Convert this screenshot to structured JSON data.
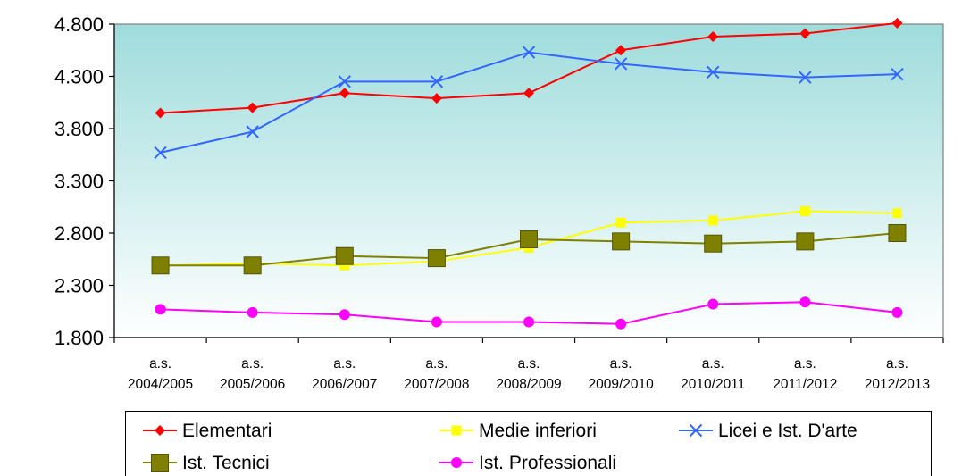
{
  "chart_data": {
    "type": "line",
    "categories": [
      [
        "a.s.",
        "2004/2005"
      ],
      [
        "a.s.",
        "2005/2006"
      ],
      [
        "a.s.",
        "2006/2007"
      ],
      [
        "a.s.",
        "2007/2008"
      ],
      [
        "a.s.",
        "2008/2009"
      ],
      [
        "a.s.",
        "2009/2010"
      ],
      [
        "a.s.",
        "2010/2011"
      ],
      [
        "a.s.",
        "2011/2012"
      ],
      [
        "a.s.",
        "2012/2013"
      ]
    ],
    "ylim": [
      1800,
      4800
    ],
    "yticks": [
      1800,
      2300,
      2800,
      3300,
      3800,
      4300,
      4800
    ],
    "ytick_labels": [
      "1.800",
      "2.300",
      "2.800",
      "3.300",
      "3.800",
      "4.300",
      "4.800"
    ],
    "grid": false,
    "legend_position": "bottom",
    "plot_background": "gradient teal to white",
    "series": [
      {
        "name": "Elementari",
        "color": "#ff0000",
        "marker": "diamond",
        "values": [
          3950,
          4000,
          4140,
          4090,
          4140,
          4550,
          4680,
          4710,
          4810
        ]
      },
      {
        "name": "Medie inferiori",
        "color": "#ffff00",
        "marker": "square",
        "values": [
          2490,
          2510,
          2490,
          2530,
          2660,
          2900,
          2920,
          3010,
          2990
        ]
      },
      {
        "name": "Licei e Ist. D'arte",
        "color": "#3366ff",
        "marker": "x",
        "values": [
          3570,
          3770,
          4250,
          4250,
          4530,
          4420,
          4340,
          4290,
          4320
        ]
      },
      {
        "name": "Ist. Tecnici",
        "color": "#808000",
        "marker": "big-square",
        "values": [
          2490,
          2490,
          2580,
          2560,
          2740,
          2720,
          2700,
          2720,
          2800
        ]
      },
      {
        "name": "Ist. Professionali",
        "color": "#ff00ff",
        "marker": "circle",
        "values": [
          2070,
          2040,
          2020,
          1950,
          1950,
          1930,
          2120,
          2140,
          2040
        ]
      }
    ]
  }
}
